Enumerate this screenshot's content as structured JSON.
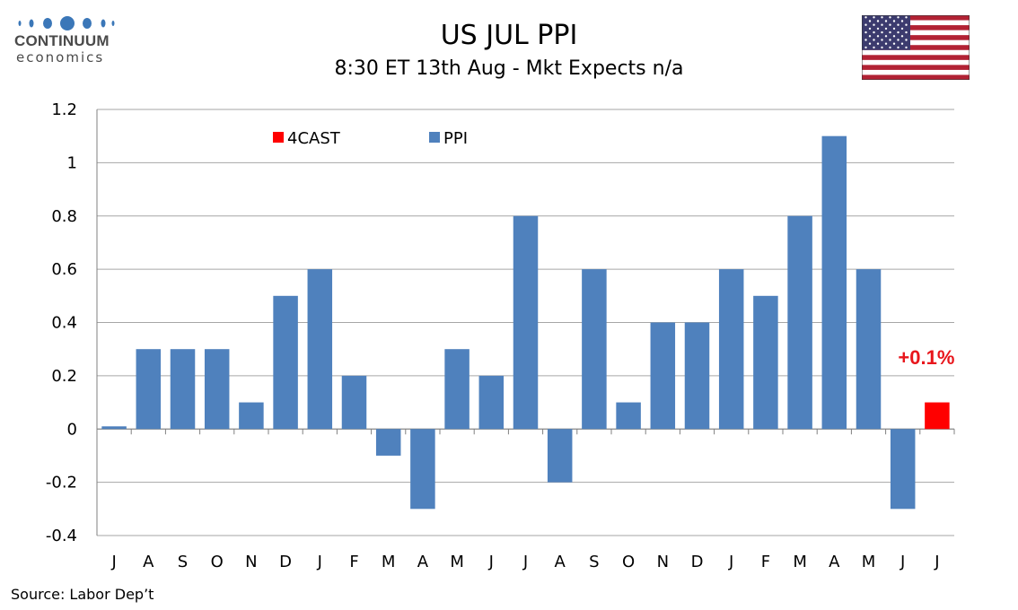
{
  "header": {
    "logo_name": "CONTINUUM",
    "logo_sub": "economics",
    "title": "US JUL PPI",
    "subtitle": "8:30 ET 13th Aug - Mkt Expects n/a"
  },
  "footer": {
    "source": "Source: Labor Dep’t"
  },
  "colors": {
    "ppi": "#4F81BD",
    "forecast": "#FF0000",
    "annotation": "#E8161C",
    "grid": "#A6A6A6",
    "logo_dots": "#3B77B8"
  },
  "flag_icon": "us-flag-icon",
  "chart_data": {
    "type": "bar",
    "categories": [
      "J",
      "A",
      "S",
      "O",
      "N",
      "D",
      "J",
      "F",
      "M",
      "A",
      "M",
      "J",
      "J",
      "A",
      "S",
      "O",
      "N",
      "D",
      "J",
      "F",
      "M",
      "A",
      "M",
      "J",
      "J"
    ],
    "series": [
      {
        "name": "PPI",
        "values": [
          0.01,
          0.3,
          0.3,
          0.3,
          0.1,
          0.5,
          0.6,
          0.2,
          -0.1,
          -0.3,
          0.3,
          0.2,
          0.8,
          -0.2,
          0.6,
          0.1,
          0.4,
          0.4,
          0.6,
          0.5,
          0.8,
          1.1,
          0.6,
          -0.3,
          null
        ]
      },
      {
        "name": "4CAST",
        "values": [
          null,
          null,
          null,
          null,
          null,
          null,
          null,
          null,
          null,
          null,
          null,
          null,
          null,
          null,
          null,
          null,
          null,
          null,
          null,
          null,
          null,
          null,
          null,
          null,
          0.1
        ]
      }
    ],
    "ylim": [
      -0.4,
      1.2
    ],
    "yticks": [
      -0.4,
      -0.2,
      0,
      0.2,
      0.4,
      0.6,
      0.8,
      1,
      1.2
    ],
    "ytick_labels": [
      "-0.4",
      "-0.2",
      "0",
      "0.2",
      "0.4",
      "0.6",
      "0.8",
      "1",
      "1.2"
    ],
    "grid": true,
    "legend": [
      {
        "label": "4CAST",
        "color": "#FF0000"
      },
      {
        "label": "PPI",
        "color": "#4F81BD"
      }
    ],
    "legend_placement": "top-left",
    "annotation": {
      "text": "+0.1%",
      "category_index": 24
    }
  }
}
